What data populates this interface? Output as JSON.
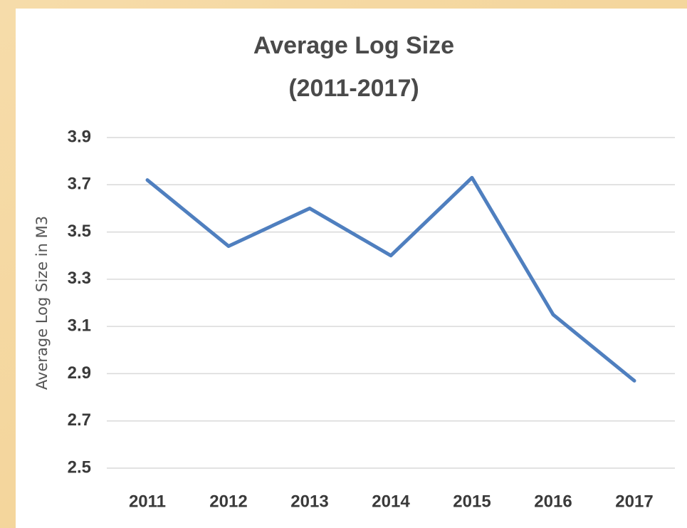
{
  "chart_data": {
    "type": "line",
    "title": "Average Log Size",
    "subtitle": "(2011-2017)",
    "y_label": "Average Log Size in M3",
    "categories": [
      "2011",
      "2012",
      "2013",
      "2014",
      "2015",
      "2016",
      "2017"
    ],
    "series": [
      {
        "name": "Average Log Size",
        "color": "#4f7fbf",
        "values": [
          3.72,
          3.44,
          3.6,
          3.4,
          3.73,
          3.15,
          2.87
        ]
      }
    ],
    "ylim": [
      2.5,
      3.9
    ],
    "yticks": [
      2.5,
      2.7,
      2.9,
      3.1,
      3.3,
      3.5,
      3.7,
      3.9
    ],
    "grid": true
  }
}
